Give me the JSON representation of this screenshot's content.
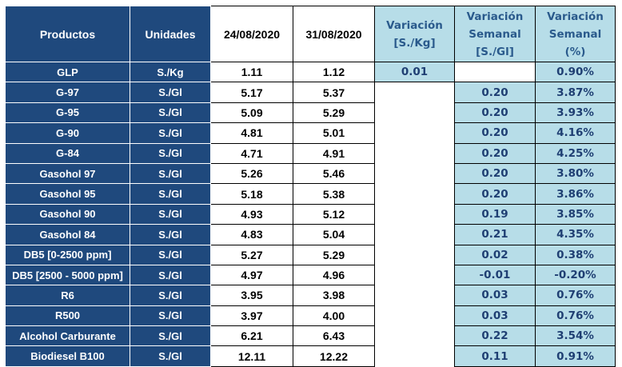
{
  "headers": {
    "productos": "Productos",
    "unidades": "Unidades",
    "date1": "24/08/2020",
    "date2": "31/08/2020",
    "variacion_line1": "Variación",
    "variacion_line2": "[S./Kg]",
    "var_sem_line1": "Variación",
    "var_sem_line2": "Semanal",
    "var_sem_line3": "[S./Gl]",
    "var_pct_line1": "Variación",
    "var_pct_line2": "Semanal",
    "var_pct_line3": "(%)"
  },
  "glp": {
    "product": "GLP",
    "unit": "S./Kg",
    "v1": "1.11",
    "v2": "1.12",
    "variacion": "0.01",
    "pct": "0.90%"
  },
  "rows": [
    {
      "product": "G-97",
      "unit": "S./Gl",
      "v1": "5.17",
      "v2": "5.37",
      "var": "0.20",
      "pct": "3.87%"
    },
    {
      "product": "G-95",
      "unit": "S./Gl",
      "v1": "5.09",
      "v2": "5.29",
      "var": "0.20",
      "pct": "3.93%"
    },
    {
      "product": "G-90",
      "unit": "S./Gl",
      "v1": "4.81",
      "v2": "5.01",
      "var": "0.20",
      "pct": "4.16%"
    },
    {
      "product": "G-84",
      "unit": "S./Gl",
      "v1": "4.71",
      "v2": "4.91",
      "var": "0.20",
      "pct": "4.25%"
    },
    {
      "product": "Gasohol 97",
      "unit": "S./Gl",
      "v1": "5.26",
      "v2": "5.46",
      "var": "0.20",
      "pct": "3.80%"
    },
    {
      "product": "Gasohol 95",
      "unit": "S./Gl",
      "v1": "5.18",
      "v2": "5.38",
      "var": "0.20",
      "pct": "3.86%"
    },
    {
      "product": "Gasohol 90",
      "unit": "S./Gl",
      "v1": "4.93",
      "v2": "5.12",
      "var": "0.19",
      "pct": "3.85%"
    },
    {
      "product": "Gasohol 84",
      "unit": "S./Gl",
      "v1": "4.83",
      "v2": "5.04",
      "var": "0.21",
      "pct": "4.35%"
    },
    {
      "product": "DB5 [0-2500 ppm]",
      "unit": "S./Gl",
      "v1": "5.27",
      "v2": "5.29",
      "var": "0.02",
      "pct": "0.38%"
    },
    {
      "product": "DB5 [2500 - 5000 ppm]",
      "unit": "S./Gl",
      "v1": "4.97",
      "v2": "4.96",
      "var": "-0.01",
      "pct": "-0.20%"
    },
    {
      "product": "R6",
      "unit": "S./Gl",
      "v1": "3.95",
      "v2": "3.98",
      "var": "0.03",
      "pct": "0.76%"
    },
    {
      "product": "R500",
      "unit": "S./Gl",
      "v1": "3.97",
      "v2": "4.00",
      "var": "0.03",
      "pct": "0.76%"
    },
    {
      "product": "Alcohol Carburante",
      "unit": "S./Gl",
      "v1": "6.21",
      "v2": "6.43",
      "var": "0.22",
      "pct": "3.54%"
    },
    {
      "product": "Biodiesel B100",
      "unit": "S./Gl",
      "v1": "12.11",
      "v2": "12.22",
      "var": "0.11",
      "pct": "0.91%"
    }
  ]
}
